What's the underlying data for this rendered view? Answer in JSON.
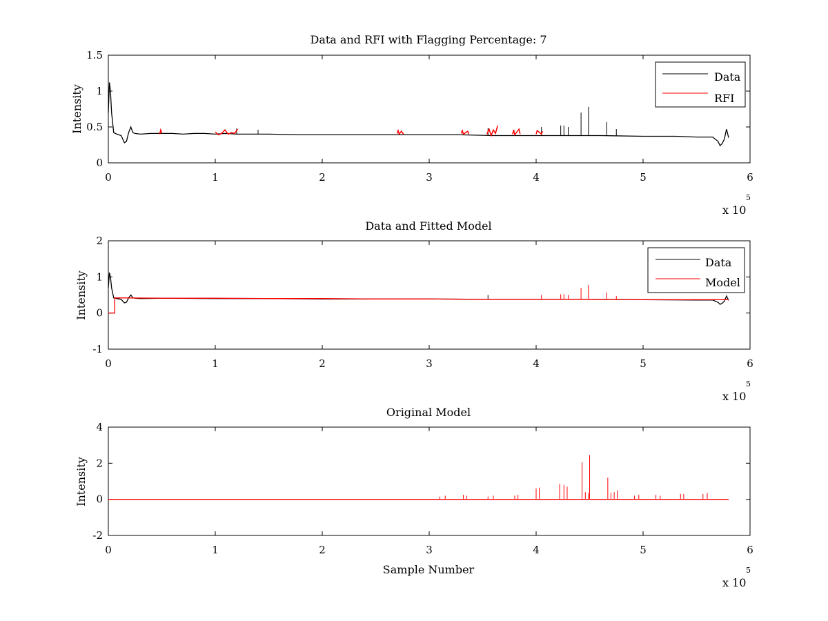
{
  "figure": {
    "background": "#ffffff",
    "axes_color": "#000000"
  },
  "chart_data": [
    {
      "type": "line",
      "title": "Data and RFI with Flagging Percentage: 7",
      "xlabel": "",
      "ylabel": "Intensity",
      "xlim": [
        0,
        6
      ],
      "ylim": [
        0,
        1.5
      ],
      "x_exponent_label": "x 10",
      "x_exponent_power": "5",
      "xticks": [
        {
          "value": 0,
          "label": "0"
        },
        {
          "value": 1,
          "label": "1"
        },
        {
          "value": 2,
          "label": "2"
        },
        {
          "value": 3,
          "label": "3"
        },
        {
          "value": 4,
          "label": "4"
        },
        {
          "value": 5,
          "label": "5"
        },
        {
          "value": 6,
          "label": "6"
        }
      ],
      "yticks": [
        {
          "value": 0,
          "label": "0"
        },
        {
          "value": 0.5,
          "label": "0.5"
        },
        {
          "value": 1,
          "label": "1"
        },
        {
          "value": 1.5,
          "label": "1.5"
        }
      ],
      "legend": {
        "position": "top-right"
      },
      "series": [
        {
          "name": "Data",
          "color": "#000000",
          "x": [
            0,
            0.01,
            0.02,
            0.03,
            0.05,
            0.08,
            0.12,
            0.15,
            0.17,
            0.19,
            0.21,
            0.23,
            0.25,
            0.3,
            0.4,
            0.5,
            0.6,
            0.7,
            0.8,
            0.9,
            1.0,
            1.1,
            1.2,
            1.3,
            1.5,
            1.8,
            2.0,
            2.3,
            2.6,
            3.0,
            3.3,
            3.6,
            4.0,
            4.3,
            4.6,
            5.0,
            5.3,
            5.5,
            5.65,
            5.7,
            5.72,
            5.74,
            5.76,
            5.78,
            5.8
          ],
          "y": [
            0.7,
            1.12,
            1.0,
            0.7,
            0.42,
            0.4,
            0.38,
            0.28,
            0.3,
            0.42,
            0.5,
            0.42,
            0.41,
            0.4,
            0.41,
            0.41,
            0.41,
            0.4,
            0.41,
            0.41,
            0.4,
            0.41,
            0.4,
            0.4,
            0.4,
            0.39,
            0.39,
            0.39,
            0.39,
            0.39,
            0.39,
            0.38,
            0.38,
            0.38,
            0.38,
            0.37,
            0.37,
            0.36,
            0.36,
            0.3,
            0.24,
            0.27,
            0.33,
            0.47,
            0.35
          ],
          "spikes": [
            {
              "x": 1.2,
              "y": 0.48
            },
            {
              "x": 1.4,
              "y": 0.46
            },
            {
              "x": 3.55,
              "y": 0.48
            },
            {
              "x": 4.05,
              "y": 0.5
            },
            {
              "x": 4.23,
              "y": 0.52
            },
            {
              "x": 4.26,
              "y": 0.52
            },
            {
              "x": 4.3,
              "y": 0.5
            },
            {
              "x": 4.42,
              "y": 0.7
            },
            {
              "x": 4.49,
              "y": 0.78
            },
            {
              "x": 4.66,
              "y": 0.57
            },
            {
              "x": 4.75,
              "y": 0.47
            }
          ]
        },
        {
          "name": "RFI",
          "color": "#ff0000",
          "segments": [
            {
              "x": [
                0.48,
                0.49,
                0.5
              ],
              "y": [
                0.4,
                0.46,
                0.41
              ]
            },
            {
              "x": [
                1.0,
                1.03,
                1.06,
                1.09,
                1.12,
                1.15,
                1.18,
                1.21
              ],
              "y": [
                0.43,
                0.39,
                0.41,
                0.46,
                0.4,
                0.42,
                0.41,
                0.47
              ]
            },
            {
              "x": [
                2.7,
                2.71,
                2.72,
                2.74,
                2.76
              ],
              "y": [
                0.41,
                0.45,
                0.4,
                0.44,
                0.4
              ]
            },
            {
              "x": [
                3.3,
                3.31,
                3.32,
                3.36,
                3.37
              ],
              "y": [
                0.41,
                0.45,
                0.4,
                0.44,
                0.4
              ]
            },
            {
              "x": [
                3.54,
                3.56,
                3.58,
                3.6,
                3.62,
                3.64
              ],
              "y": [
                0.4,
                0.47,
                0.38,
                0.46,
                0.41,
                0.52
              ]
            },
            {
              "x": [
                3.78,
                3.79,
                3.8,
                3.84,
                3.85
              ],
              "y": [
                0.4,
                0.46,
                0.39,
                0.47,
                0.4
              ]
            },
            {
              "x": [
                4.0,
                4.01,
                4.05,
                4.06
              ],
              "y": [
                0.4,
                0.45,
                0.4,
                0.44
              ]
            }
          ]
        }
      ]
    },
    {
      "type": "line",
      "title": "Data and Fitted Model",
      "xlabel": "",
      "ylabel": "Intensity",
      "xlim": [
        0,
        6
      ],
      "ylim": [
        -1,
        2
      ],
      "x_exponent_label": "x 10",
      "x_exponent_power": "5",
      "xticks": [
        {
          "value": 0,
          "label": "0"
        },
        {
          "value": 1,
          "label": "1"
        },
        {
          "value": 2,
          "label": "2"
        },
        {
          "value": 3,
          "label": "3"
        },
        {
          "value": 4,
          "label": "4"
        },
        {
          "value": 5,
          "label": "5"
        },
        {
          "value": 6,
          "label": "6"
        }
      ],
      "yticks": [
        {
          "value": -1,
          "label": "-1"
        },
        {
          "value": 0,
          "label": "0"
        },
        {
          "value": 1,
          "label": "1"
        },
        {
          "value": 2,
          "label": "2"
        }
      ],
      "legend": {
        "position": "top-right"
      },
      "series": [
        {
          "name": "Data",
          "color": "#000000",
          "x": [
            0,
            0.01,
            0.02,
            0.03,
            0.05,
            0.08,
            0.12,
            0.15,
            0.17,
            0.19,
            0.21,
            0.23,
            0.25,
            0.3,
            0.5,
            1.0,
            1.5,
            2.0,
            2.5,
            3.0,
            3.5,
            4.0,
            4.5,
            5.0,
            5.5,
            5.65,
            5.7,
            5.72,
            5.74,
            5.76,
            5.78,
            5.8
          ],
          "y": [
            0.7,
            1.12,
            1.0,
            0.7,
            0.42,
            0.4,
            0.38,
            0.28,
            0.3,
            0.42,
            0.5,
            0.42,
            0.41,
            0.4,
            0.41,
            0.4,
            0.4,
            0.39,
            0.39,
            0.39,
            0.38,
            0.38,
            0.38,
            0.37,
            0.36,
            0.36,
            0.3,
            0.24,
            0.27,
            0.33,
            0.47,
            0.35
          ],
          "spikes": [
            {
              "x": 3.55,
              "y": 0.5
            }
          ]
        },
        {
          "name": "Model",
          "color": "#ff0000",
          "x": [
            0,
            0.06,
            0.06,
            0.5,
            1.0,
            1.5,
            2.0,
            2.5,
            3.0,
            3.5,
            4.0,
            4.5,
            5.0,
            5.5,
            5.8
          ],
          "y": [
            0.0,
            0.0,
            0.42,
            0.41,
            0.41,
            0.4,
            0.4,
            0.39,
            0.39,
            0.38,
            0.38,
            0.38,
            0.37,
            0.37,
            0.37
          ],
          "spikes": [
            {
              "x": 4.05,
              "y": 0.5
            },
            {
              "x": 4.23,
              "y": 0.52
            },
            {
              "x": 4.26,
              "y": 0.52
            },
            {
              "x": 4.3,
              "y": 0.5
            },
            {
              "x": 4.42,
              "y": 0.7
            },
            {
              "x": 4.49,
              "y": 0.78
            },
            {
              "x": 4.66,
              "y": 0.57
            },
            {
              "x": 4.75,
              "y": 0.47
            }
          ]
        }
      ]
    },
    {
      "type": "line",
      "title": "Original Model",
      "xlabel": "Sample Number",
      "ylabel": "Intensity",
      "xlim": [
        0,
        6
      ],
      "ylim": [
        -2,
        4
      ],
      "x_exponent_label": "x 10",
      "x_exponent_power": "5",
      "xticks": [
        {
          "value": 0,
          "label": "0"
        },
        {
          "value": 1,
          "label": "1"
        },
        {
          "value": 2,
          "label": "2"
        },
        {
          "value": 3,
          "label": "3"
        },
        {
          "value": 4,
          "label": "4"
        },
        {
          "value": 5,
          "label": "5"
        },
        {
          "value": 6,
          "label": "6"
        }
      ],
      "yticks": [
        {
          "value": -2,
          "label": "-2"
        },
        {
          "value": 0,
          "label": "0"
        },
        {
          "value": 2,
          "label": "2"
        },
        {
          "value": 4,
          "label": "4"
        }
      ],
      "series": [
        {
          "color": "#ff0000",
          "x": [
            0,
            5.8
          ],
          "y": [
            0,
            0
          ],
          "spikes": [
            {
              "x": 3.1,
              "y": 0.15
            },
            {
              "x": 3.15,
              "y": 0.2
            },
            {
              "x": 3.32,
              "y": 0.25
            },
            {
              "x": 3.35,
              "y": 0.2
            },
            {
              "x": 3.55,
              "y": 0.15
            },
            {
              "x": 3.6,
              "y": 0.2
            },
            {
              "x": 3.8,
              "y": 0.2
            },
            {
              "x": 3.83,
              "y": 0.25
            },
            {
              "x": 4.0,
              "y": 0.6
            },
            {
              "x": 4.03,
              "y": 0.65
            },
            {
              "x": 4.22,
              "y": 0.85
            },
            {
              "x": 4.26,
              "y": 0.8
            },
            {
              "x": 4.29,
              "y": 0.7
            },
            {
              "x": 4.43,
              "y": 2.05
            },
            {
              "x": 4.46,
              "y": 0.4
            },
            {
              "x": 4.49,
              "y": 0.35
            },
            {
              "x": 4.5,
              "y": 2.45
            },
            {
              "x": 4.67,
              "y": 1.2
            },
            {
              "x": 4.7,
              "y": 0.35
            },
            {
              "x": 4.73,
              "y": 0.4
            },
            {
              "x": 4.76,
              "y": 0.5
            },
            {
              "x": 4.92,
              "y": 0.2
            },
            {
              "x": 4.96,
              "y": 0.25
            },
            {
              "x": 5.12,
              "y": 0.25
            },
            {
              "x": 5.16,
              "y": 0.2
            },
            {
              "x": 5.35,
              "y": 0.3
            },
            {
              "x": 5.38,
              "y": 0.3
            },
            {
              "x": 5.56,
              "y": 0.3
            },
            {
              "x": 5.6,
              "y": 0.35
            }
          ]
        }
      ]
    }
  ]
}
